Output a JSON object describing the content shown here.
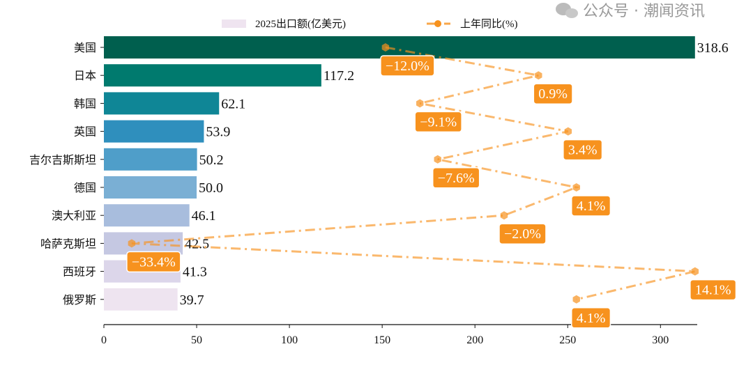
{
  "chart_data": {
    "type": "bar",
    "orientation": "horizontal",
    "categories": [
      "美国",
      "日本",
      "韩国",
      "英国",
      "吉尔吉斯斯坦",
      "德国",
      "澳大利亚",
      "哈萨克斯坦",
      "西班牙",
      "俄罗斯"
    ],
    "series": [
      {
        "name": "2025出口额(亿美元)",
        "type": "bar",
        "values": [
          318.6,
          117.2,
          62.1,
          53.9,
          50.2,
          50.0,
          46.1,
          42.5,
          41.3,
          39.7
        ],
        "colors": [
          "#005f4e",
          "#007a6e",
          "#0f8696",
          "#2f8fbd",
          "#4f9ec9",
          "#7aafd4",
          "#a8bddd",
          "#c5c8e2",
          "#dcd6ea",
          "#eee4f0"
        ]
      },
      {
        "name": "上年同比(%)",
        "type": "line",
        "values": [
          -12.0,
          0.9,
          -9.1,
          3.4,
          -7.6,
          4.1,
          -2.0,
          -33.4,
          14.1,
          4.1
        ],
        "labels": [
          "−12.0%",
          "0.9%",
          "−9.1%",
          "3.4%",
          "−7.6%",
          "4.1%",
          "−2.0%",
          "−33.4%",
          "14.1%",
          "4.1%"
        ],
        "color": "#f7921e"
      }
    ],
    "value_labels": [
      "318.6",
      "117.2",
      "62.1",
      "53.9",
      "50.2",
      "50.0",
      "46.1",
      "42.5",
      "41.3",
      "39.7"
    ],
    "xticks": [
      "0",
      "50",
      "100",
      "150",
      "200",
      "250",
      "300"
    ],
    "xlim": [
      0,
      320
    ],
    "legend_placement": "top-center",
    "grid": false
  },
  "watermark": "公众号 · 潮闻资讯"
}
